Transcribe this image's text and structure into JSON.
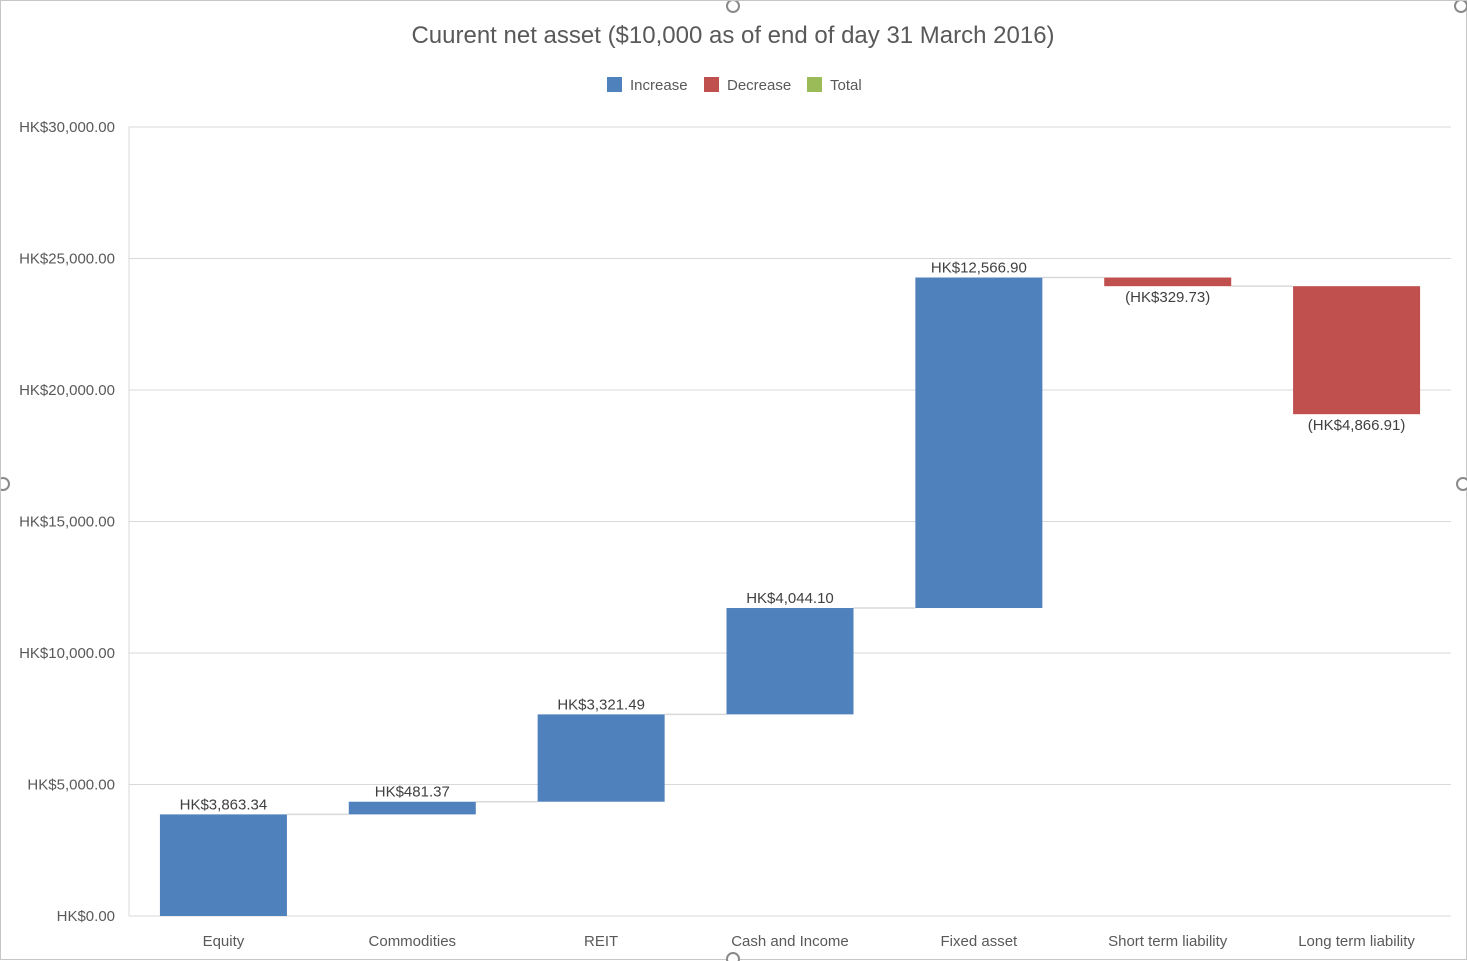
{
  "chart_data": {
    "type": "waterfall",
    "title": "Cuurent net asset  ($10,000 as of end of day 31 March 2016)",
    "legend": {
      "placement": "top-center",
      "items": [
        {
          "key": "increase",
          "label": "Increase",
          "color": "#4F81BD"
        },
        {
          "key": "decrease",
          "label": "Decrease",
          "color": "#C0504D"
        },
        {
          "key": "total",
          "label": "Total",
          "color": "#9BBB59"
        }
      ]
    },
    "categories": [
      "Equity",
      "Commodities",
      "REIT",
      "Cash and Income",
      "Fixed asset",
      "Short term liability",
      "Long term liability"
    ],
    "values": [
      3863.34,
      481.37,
      3321.49,
      4044.1,
      12566.9,
      -329.73,
      -4866.91
    ],
    "data_labels": [
      "HK$3,863.34",
      "HK$481.37",
      "HK$3,321.49",
      "HK$4,044.10",
      "HK$12,566.90",
      "(HK$329.73)",
      "(HK$4,866.91)"
    ],
    "ylim": [
      0,
      30000
    ],
    "yticks": [
      0,
      5000,
      10000,
      15000,
      20000,
      25000,
      30000
    ],
    "ytick_labels": [
      "HK$0.00",
      "HK$5,000.00",
      "HK$10,000.00",
      "HK$15,000.00",
      "HK$20,000.00",
      "HK$25,000.00",
      "HK$30,000.00"
    ],
    "grid": true,
    "connector_lines": true,
    "xlabel": "",
    "ylabel": ""
  }
}
